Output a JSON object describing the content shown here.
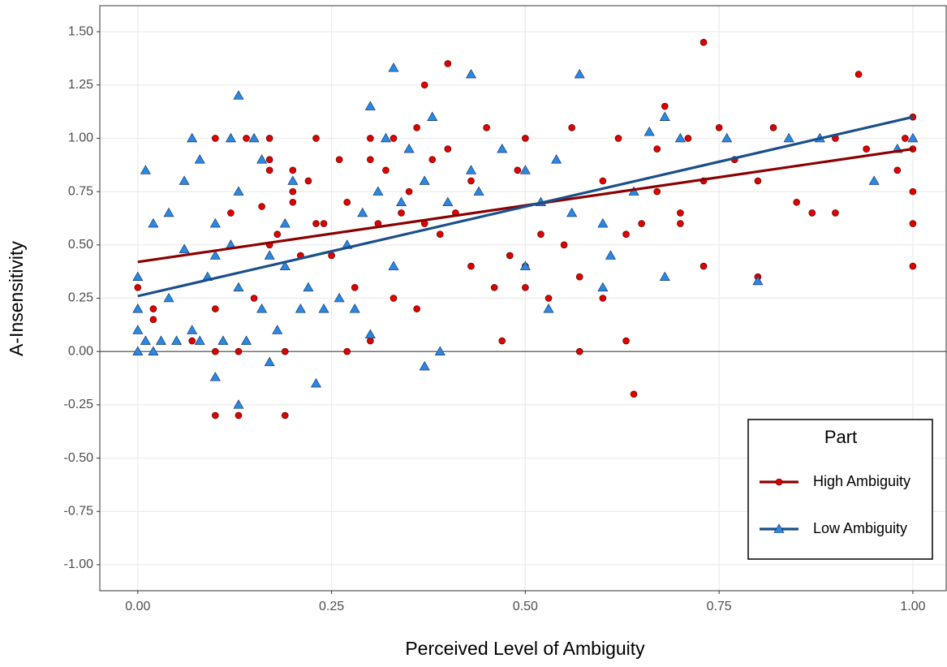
{
  "chart_data": {
    "type": "scatter",
    "x_label": "Perceived Level of Ambiguity",
    "y_label": "A-Insensitivity",
    "xlim": [
      -0.049,
      1.043
    ],
    "ylim": [
      -1.122,
      1.622
    ],
    "xticks": [
      {
        "value": 0,
        "label": "0.00"
      },
      {
        "value": 0.25,
        "label": "0.25"
      },
      {
        "value": 0.5,
        "label": "0.50"
      },
      {
        "value": 0.75,
        "label": "0.75"
      },
      {
        "value": 1,
        "label": "1.00"
      }
    ],
    "yticks": [
      {
        "value": -1,
        "label": "-1.00"
      },
      {
        "value": -0.75,
        "label": "-0.75"
      },
      {
        "value": -0.5,
        "label": "-0.50"
      },
      {
        "value": -0.25,
        "label": "-0.25"
      },
      {
        "value": 0,
        "label": "0.00"
      },
      {
        "value": 0.25,
        "label": "0.25"
      },
      {
        "value": 0.5,
        "label": "0.50"
      },
      {
        "value": 0.75,
        "label": "0.75"
      },
      {
        "value": 1,
        "label": "1.00"
      },
      {
        "value": 1.25,
        "label": "1.25"
      },
      {
        "value": 1.5,
        "label": "1.50"
      }
    ],
    "grid": true,
    "hline": 0,
    "legend_title": "Part",
    "legend_position": "bottom-right",
    "series": [
      {
        "name": "High Ambiguity",
        "color": "#e00000",
        "line_color": "#8b0000",
        "marker": "circle",
        "x": [
          0,
          0.02,
          0.02,
          0.07,
          0.1,
          0.1,
          0.1,
          0.1,
          0.12,
          0.13,
          0.13,
          0.14,
          0.15,
          0.16,
          0.17,
          0.17,
          0.17,
          0.17,
          0.18,
          0.19,
          0.19,
          0.2,
          0.2,
          0.2,
          0.21,
          0.22,
          0.23,
          0.23,
          0.24,
          0.25,
          0.26,
          0.27,
          0.27,
          0.28,
          0.3,
          0.3,
          0.3,
          0.31,
          0.32,
          0.33,
          0.33,
          0.34,
          0.35,
          0.36,
          0.36,
          0.37,
          0.37,
          0.38,
          0.39,
          0.4,
          0.4,
          0.41,
          0.43,
          0.43,
          0.45,
          0.46,
          0.47,
          0.48,
          0.49,
          0.5,
          0.5,
          0.5,
          0.52,
          0.53,
          0.55,
          0.56,
          0.57,
          0.57,
          0.6,
          0.6,
          0.62,
          0.63,
          0.63,
          0.64,
          0.65,
          0.67,
          0.67,
          0.68,
          0.7,
          0.7,
          0.71,
          0.73,
          0.73,
          0.73,
          0.75,
          0.77,
          0.8,
          0.8,
          0.82,
          0.85,
          0.87,
          0.9,
          0.9,
          0.93,
          0.94,
          0.98,
          1,
          1,
          1,
          1,
          1,
          0.99
        ],
        "values": [
          0.3,
          0.15,
          0.2,
          0.05,
          1,
          -0.3,
          0.2,
          0,
          0.65,
          -0.3,
          0,
          1,
          0.25,
          0.68,
          1,
          0.9,
          0.85,
          0.5,
          0.55,
          -0.3,
          0,
          0.75,
          0.7,
          0.85,
          0.45,
          0.8,
          0.6,
          1,
          0.6,
          0.45,
          0.9,
          0,
          0.7,
          0.3,
          0.9,
          0.05,
          1,
          0.6,
          0.85,
          1,
          0.25,
          0.65,
          0.75,
          0.2,
          1.05,
          1.25,
          0.6,
          0.9,
          0.55,
          1.35,
          0.95,
          0.65,
          0.4,
          0.8,
          1.05,
          0.3,
          0.05,
          0.45,
          0.85,
          0.4,
          1,
          0.3,
          0.55,
          0.25,
          0.5,
          1.05,
          0,
          0.35,
          0.8,
          0.25,
          1,
          0.55,
          0.05,
          -0.2,
          0.6,
          0.95,
          0.75,
          1.15,
          0.6,
          0.65,
          1,
          1.45,
          0.4,
          0.8,
          1.05,
          0.9,
          0.35,
          0.8,
          1.05,
          0.7,
          0.65,
          0.65,
          1,
          1.3,
          0.95,
          0.85,
          0.4,
          0.6,
          0.75,
          1.1,
          0.95,
          1
        ],
        "trend_x": [
          0,
          1
        ],
        "trend_y": [
          0.42,
          0.95
        ]
      },
      {
        "name": "Low Ambiguity",
        "color": "#2b87e3",
        "line_color": "#1a4f8a",
        "marker": "triangle",
        "x": [
          0,
          0,
          0,
          0,
          0.01,
          0.01,
          0.02,
          0.02,
          0.03,
          0.04,
          0.04,
          0.05,
          0.06,
          0.06,
          0.07,
          0.07,
          0.08,
          0.08,
          0.09,
          0.1,
          0.1,
          0.1,
          0.11,
          0.12,
          0.12,
          0.13,
          0.13,
          0.13,
          0.13,
          0.14,
          0.15,
          0.16,
          0.16,
          0.17,
          0.17,
          0.18,
          0.19,
          0.19,
          0.2,
          0.21,
          0.22,
          0.23,
          0.24,
          0.26,
          0.27,
          0.28,
          0.29,
          0.3,
          0.3,
          0.31,
          0.32,
          0.33,
          0.33,
          0.34,
          0.35,
          0.37,
          0.37,
          0.38,
          0.39,
          0.4,
          0.43,
          0.43,
          0.44,
          0.47,
          0.5,
          0.5,
          0.52,
          0.53,
          0.54,
          0.56,
          0.57,
          0.6,
          0.6,
          0.61,
          0.64,
          0.66,
          0.68,
          0.68,
          0.7,
          0.76,
          0.8,
          0.84,
          0.88,
          0.95,
          0.98,
          1
        ],
        "values": [
          0.35,
          0.2,
          0.1,
          0,
          0.05,
          0.85,
          0,
          0.6,
          0.05,
          0.25,
          0.65,
          0.05,
          0.8,
          0.48,
          1,
          0.1,
          0.9,
          0.05,
          0.35,
          0.6,
          -0.12,
          0.45,
          0.05,
          1,
          0.5,
          1.2,
          -0.25,
          0.75,
          0.3,
          0.05,
          1,
          0.2,
          0.9,
          -0.05,
          0.45,
          0.1,
          0.6,
          0.4,
          0.8,
          0.2,
          0.3,
          -0.15,
          0.2,
          0.25,
          0.5,
          0.2,
          0.65,
          1.15,
          0.08,
          0.75,
          1,
          1.33,
          0.4,
          0.7,
          0.95,
          -0.07,
          0.8,
          1.1,
          0,
          0.7,
          1.3,
          0.85,
          0.75,
          0.95,
          0.85,
          0.4,
          0.7,
          0.2,
          0.9,
          0.65,
          1.3,
          0.6,
          0.3,
          0.45,
          0.75,
          1.03,
          1.1,
          0.35,
          1,
          1,
          0.33,
          1,
          1,
          0.8,
          0.95,
          1
        ],
        "trend_x": [
          0,
          1
        ],
        "trend_y": [
          0.26,
          1.1
        ]
      }
    ]
  }
}
